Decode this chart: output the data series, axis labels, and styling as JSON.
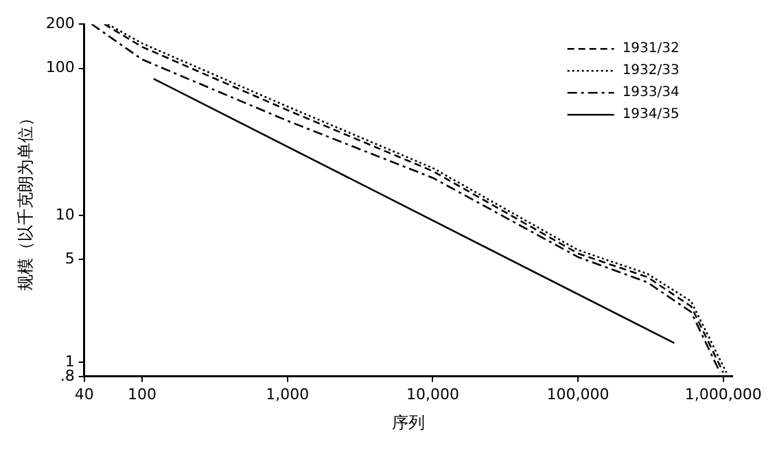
{
  "chart_data": {
    "type": "line",
    "xlabel": "序列",
    "ylabel": "规模（以千克朗为单位）",
    "log": "xy",
    "legend": "top right",
    "marker": "none",
    "xlim": [
      40,
      1150000
    ],
    "ylim": [
      0.8,
      200
    ],
    "xticks": [
      40,
      100,
      {
        "value": 1000,
        "label": "1,000"
      },
      {
        "value": 10000,
        "label": "10,000"
      },
      {
        "value": 100000,
        "label": "100,000"
      },
      {
        "value": 1000000,
        "label": "1,000,000"
      }
    ],
    "yticks": [
      {
        "value": 0.8,
        "label": ".8"
      },
      1,
      5,
      10,
      100,
      200
    ],
    "series": [
      {
        "name": "1931/32",
        "color": "#000000",
        "line_style": "dashed",
        "x": [
          55,
          100,
          1000,
          10000,
          100000,
          300000,
          600000,
          1000000
        ],
        "values": [
          200,
          140,
          52,
          20,
          5.5,
          3.8,
          2.4,
          0.85
        ]
      },
      {
        "name": "1932/33",
        "color": "#000000",
        "line_style": "dotted",
        "x": [
          58,
          100,
          1000,
          10000,
          100000,
          300000,
          600000,
          1050000
        ],
        "values": [
          200,
          148,
          55,
          21,
          5.8,
          4.0,
          2.6,
          0.85
        ]
      },
      {
        "name": "1933/34",
        "color": "#000000",
        "line_style": "dashdot",
        "x": [
          45,
          100,
          1000,
          10000,
          100000,
          300000,
          600000,
          950000
        ],
        "values": [
          200,
          115,
          44,
          18,
          5.2,
          3.5,
          2.2,
          0.85
        ]
      },
      {
        "name": "1934/35",
        "color": "#000000",
        "line_style": "solid",
        "x": [
          120,
          460000
        ],
        "values": [
          85,
          1.35
        ]
      }
    ]
  }
}
